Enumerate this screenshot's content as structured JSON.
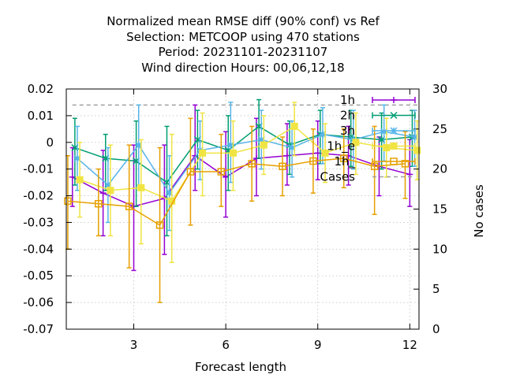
{
  "chart_data": {
    "type": "line",
    "title_lines": [
      "Normalized mean RMSE diff (90% conf) vs Ref",
      "Selection: METCOOP using   470 stations",
      "Period: 20231101-20231107",
      "Wind direction   Hours:  00,06,12,18"
    ],
    "xlabel": "Forecast length",
    "ylabel_right": "No cases",
    "xlim": [
      0.8,
      12.3
    ],
    "ylim": [
      -0.07,
      0.02
    ],
    "y2lim": [
      0,
      30
    ],
    "xticks": [
      3,
      6,
      9,
      12
    ],
    "yticks": [
      -0.07,
      -0.06,
      -0.05,
      -0.04,
      -0.03,
      -0.02,
      -0.01,
      0,
      0.01,
      0.02
    ],
    "ytick_labels": [
      "-0.07",
      "-0.06",
      "-0.05",
      "-0.04",
      "-0.03",
      "-0.02",
      "-0.01",
      "0",
      "0.01",
      "0.02"
    ],
    "y2ticks": [
      0,
      5,
      10,
      15,
      20,
      25,
      30
    ],
    "grid": true,
    "legend_position": "top-right",
    "series": [
      {
        "name": "1h",
        "color": "#9400d3",
        "marker": "plus",
        "x": [
          1,
          2,
          3,
          4,
          5,
          6,
          7,
          8,
          9,
          10,
          11,
          12
        ],
        "y": [
          -0.013,
          -0.019,
          -0.024,
          -0.021,
          -0.005,
          -0.013,
          -0.006,
          -0.005,
          -0.004,
          -0.005,
          -0.009,
          -0.012
        ],
        "err_low": [
          -0.024,
          -0.035,
          -0.048,
          -0.042,
          -0.018,
          -0.028,
          -0.02,
          -0.016,
          -0.014,
          -0.016,
          -0.02,
          -0.024
        ],
        "err_high": [
          -0.002,
          -0.003,
          -0.001,
          -0.001,
          0.014,
          0.004,
          0.009,
          0.007,
          0.008,
          0.006,
          0.002,
          0.001
        ]
      },
      {
        "name": "2h",
        "color": "#009e73",
        "marker": "cross",
        "x": [
          1.08,
          2.08,
          3.08,
          4.08,
          5.08,
          6.08,
          7.08,
          8.08,
          9.08,
          10.08,
          11.08,
          12.08
        ],
        "y": [
          -0.002,
          -0.006,
          -0.007,
          -0.015,
          0.001,
          -0.003,
          0.006,
          -0.001,
          0.003,
          0.002,
          0.001,
          0.002
        ],
        "err_low": [
          -0.016,
          -0.018,
          -0.024,
          -0.035,
          -0.01,
          -0.018,
          -0.006,
          -0.012,
          -0.008,
          -0.009,
          -0.01,
          -0.009
        ],
        "err_high": [
          0.009,
          0.003,
          0.008,
          0.006,
          0.012,
          0.01,
          0.016,
          0.008,
          0.012,
          0.012,
          0.011,
          0.012
        ]
      },
      {
        "name": "3h",
        "color": "#56b4e9",
        "marker": "star",
        "x": [
          1.16,
          2.16,
          3.16,
          4.16,
          5.16,
          6.16,
          7.16,
          8.16,
          9.16,
          10.16,
          11.16,
          12.16
        ],
        "y": [
          -0.006,
          -0.016,
          -0.001,
          -0.019,
          -0.003,
          -0.001,
          0.001,
          -0.002,
          0.003,
          0.001,
          0.004,
          0.002
        ],
        "err_low": [
          -0.018,
          -0.03,
          -0.016,
          -0.033,
          -0.014,
          -0.015,
          -0.01,
          -0.013,
          -0.008,
          -0.01,
          -0.007,
          -0.009
        ],
        "err_high": [
          0.006,
          -0.002,
          0.014,
          -0.005,
          0.008,
          0.015,
          0.012,
          0.008,
          0.013,
          0.012,
          0.014,
          0.012
        ]
      },
      {
        "name": "1h_e",
        "color": "#f0e442",
        "marker": "filled-square",
        "x": [
          1.24,
          2.24,
          3.24,
          4.24,
          5.24,
          6.24,
          7.24,
          8.24,
          9.24,
          10.24,
          11.24,
          12.24
        ],
        "y": [
          -0.014,
          -0.018,
          -0.017,
          -0.022,
          -0.004,
          -0.004,
          -0.001,
          0.006,
          -0.004,
          0.0,
          -0.002,
          -0.003
        ],
        "err_low": [
          -0.028,
          -0.035,
          -0.038,
          -0.045,
          -0.02,
          -0.018,
          -0.012,
          -0.005,
          -0.015,
          -0.012,
          -0.013,
          -0.014
        ],
        "err_high": [
          0.0,
          -0.001,
          0.001,
          0.003,
          0.011,
          0.008,
          0.01,
          0.015,
          0.007,
          0.011,
          0.009,
          0.008
        ]
      },
      {
        "name": "1h_",
        "color": "#e69f00",
        "marker": "open-square",
        "x": [
          0.85,
          1.85,
          2.85,
          3.85,
          4.85,
          5.85,
          6.85,
          7.85,
          8.85,
          9.85,
          10.85,
          11.85
        ],
        "y": [
          -0.022,
          -0.023,
          -0.024,
          -0.031,
          -0.011,
          -0.011,
          -0.008,
          -0.009,
          -0.007,
          -0.006,
          -0.009,
          -0.008
        ],
        "err_low": [
          -0.04,
          -0.035,
          -0.047,
          -0.06,
          -0.031,
          -0.024,
          -0.022,
          -0.02,
          -0.019,
          -0.017,
          -0.027,
          -0.021
        ],
        "err_high": [
          -0.005,
          -0.01,
          -0.001,
          -0.002,
          0.009,
          0.003,
          0.006,
          0.002,
          0.005,
          0.005,
          0.006,
          0.004
        ]
      }
    ],
    "cases": {
      "name": "Cases",
      "color": "#a0a0a0",
      "axis": "y2",
      "x": [
        1,
        12.3
      ],
      "values": [
        28,
        28
      ]
    }
  }
}
